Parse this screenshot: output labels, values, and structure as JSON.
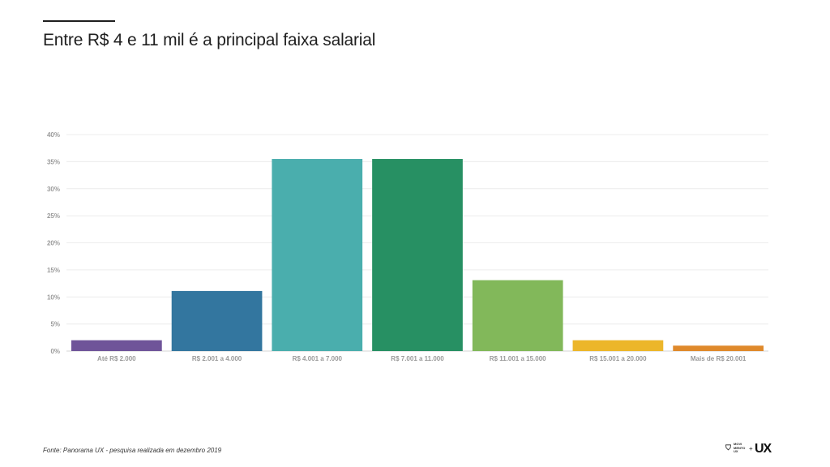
{
  "slide": {
    "title": "Entre R$ 4 e 11 mil é a principal faixa salarial",
    "source": "Fonte: Panorama UX - pesquisa realizada em dezembro 2019"
  },
  "logo": {
    "line1": "MOVI",
    "line2": "MENTO",
    "line3": "UX",
    "plus": "+",
    "brand": "UX",
    "icon": "movimento-ux-logo-icon"
  },
  "chart_data": {
    "type": "bar",
    "title": "",
    "xlabel": "",
    "ylabel": "",
    "ylim": [
      0,
      40
    ],
    "yticks": [
      0,
      5,
      10,
      15,
      20,
      25,
      30,
      35,
      40
    ],
    "ytick_labels": [
      "0%",
      "5%",
      "10%",
      "15%",
      "20%",
      "25%",
      "30%",
      "35%",
      "40%"
    ],
    "categories": [
      "Até R$ 2.000",
      "R$ 2.001 a 4.000",
      "R$ 4.001 a 7.000",
      "R$ 7.001 a 11.000",
      "R$ 11.001 a 15.000",
      "R$ 15.001 a 20.000",
      "Mais de R$ 20.001"
    ],
    "values": [
      2.0,
      11.1,
      35.5,
      35.5,
      13.1,
      2.0,
      1.0
    ],
    "colors": [
      "#6f5499",
      "#33769f",
      "#4aaead",
      "#279063",
      "#82b85a",
      "#ecb62a",
      "#df892b"
    ],
    "grid": true,
    "legend": "none"
  }
}
